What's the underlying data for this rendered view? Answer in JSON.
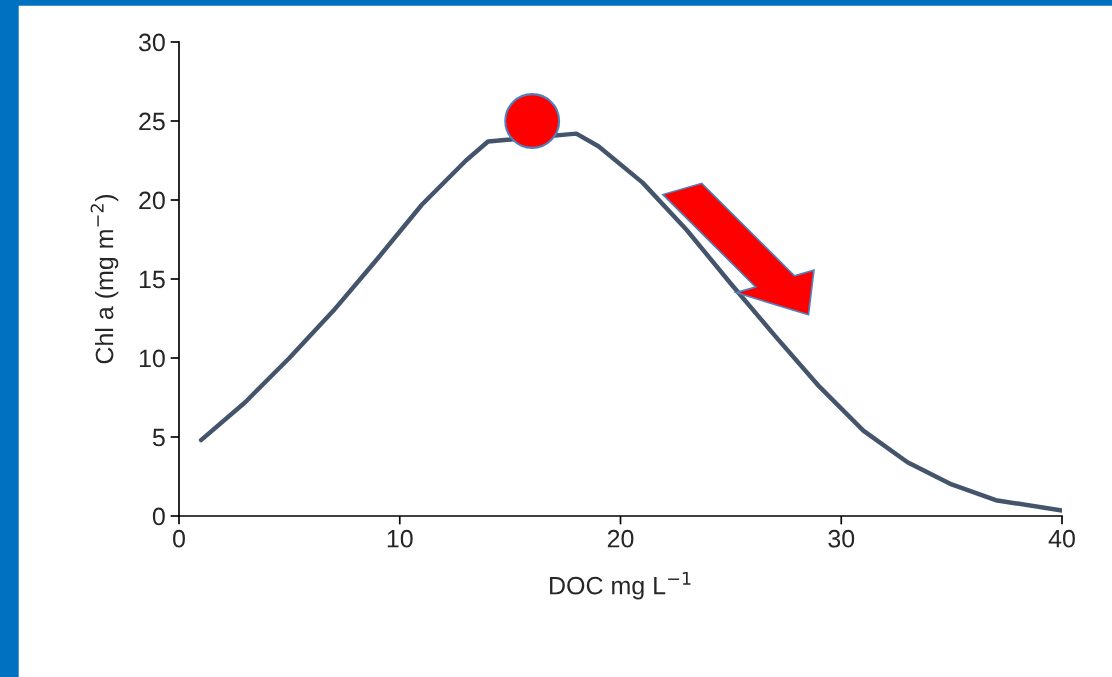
{
  "chart_data": {
    "type": "line",
    "xlabel": "DOC mg L$^{−1}$",
    "ylabel": "Chl a (mg m$^{−2}$)",
    "xlim": [
      0,
      40
    ],
    "xticks": [
      0,
      10,
      20,
      30,
      40
    ],
    "ylim": [
      0,
      30
    ],
    "yticks": [
      0,
      5,
      10,
      15,
      20,
      25,
      30
    ],
    "grid": false,
    "legend": false,
    "series": [
      {
        "color": "#44546a",
        "x": [
          1,
          3,
          5,
          7,
          9,
          11,
          13,
          14,
          18,
          19,
          21,
          23,
          25,
          27,
          29,
          31,
          33,
          35,
          37,
          40
        ],
        "values": [
          4.8,
          7.2,
          10.0,
          13.0,
          16.3,
          19.7,
          22.5,
          23.7,
          24.2,
          23.4,
          21.1,
          18.1,
          14.7,
          11.4,
          8.2,
          5.4,
          3.4,
          2.0,
          1.0,
          0.35
        ],
        "marker": "none",
        "line_style": "solid"
      },
      {
        "type": "scatter",
        "color": "#ff0000",
        "x": [
          16
        ],
        "values": [
          25
        ],
        "marker": "circle"
      }
    ]
  }
}
